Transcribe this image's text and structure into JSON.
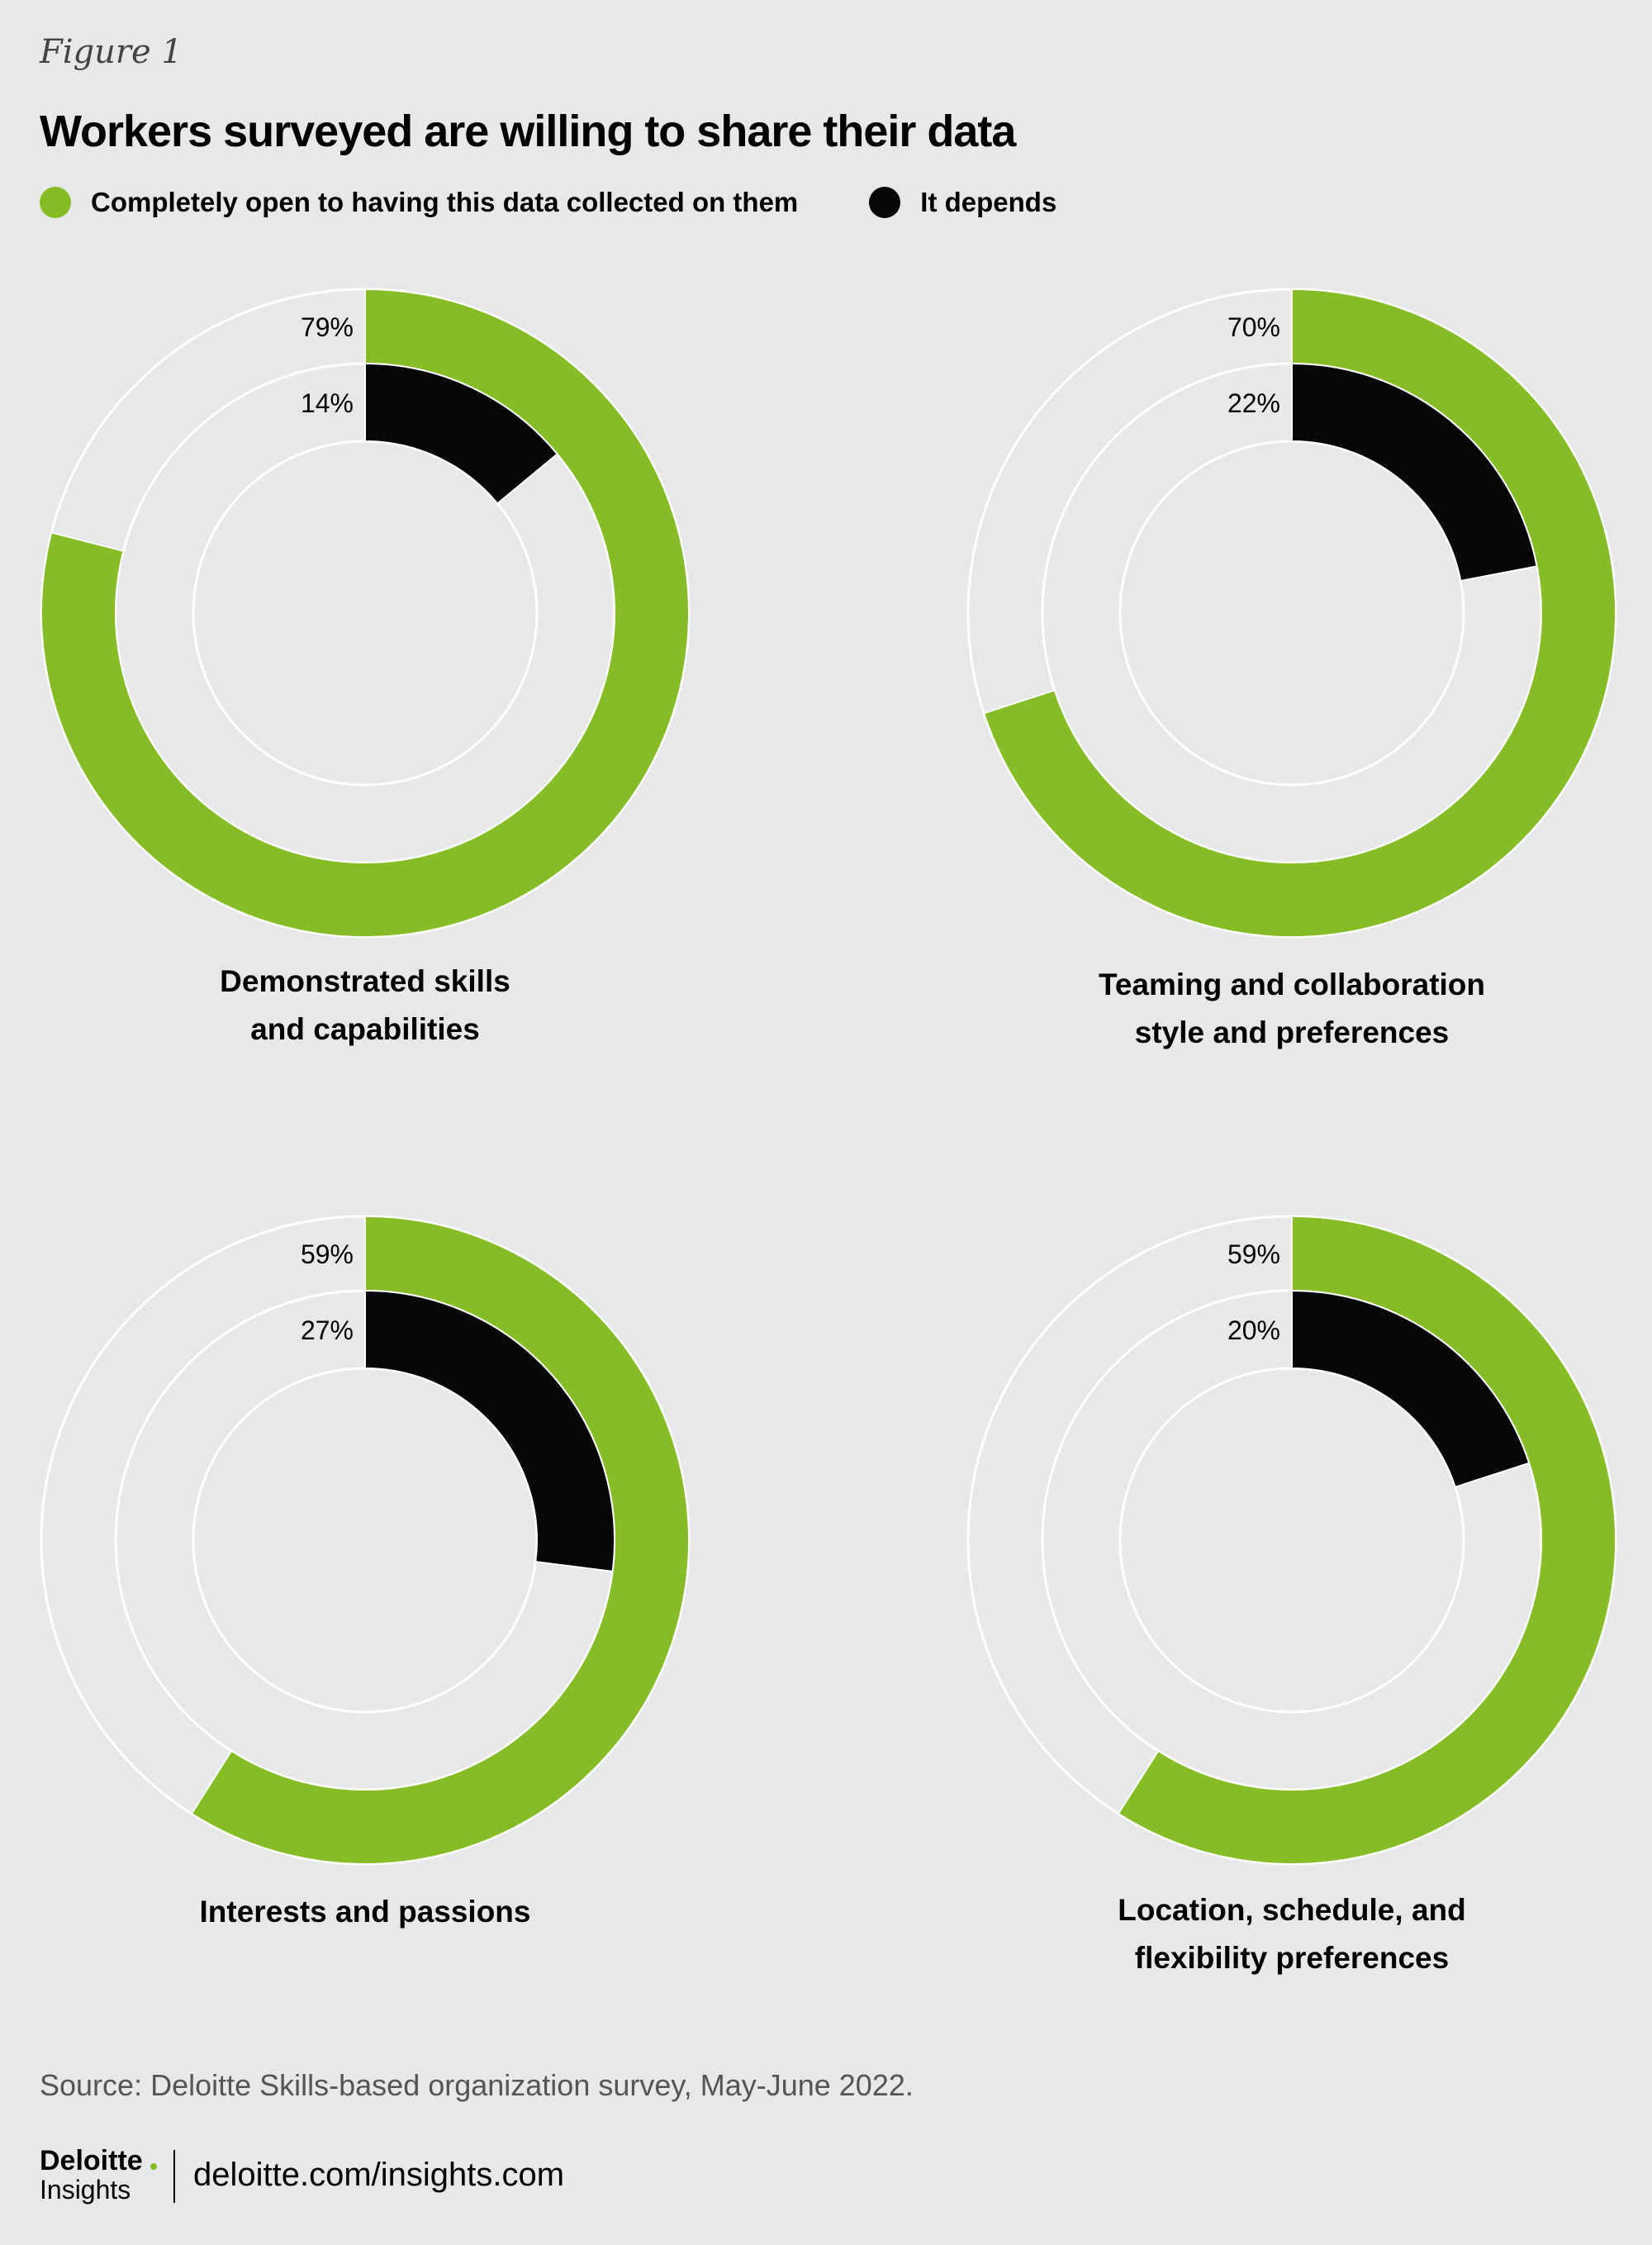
{
  "figure_label": "Figure 1",
  "title": "Workers surveyed are willing to share their data",
  "legend": [
    {
      "label": "Completely open to having this data collected on them",
      "color": "#86bc25"
    },
    {
      "label": "It depends",
      "color": "#050607"
    }
  ],
  "colors": {
    "background": "#e7e8ea",
    "open": "#86bc25",
    "depends": "#050607",
    "ring_outline": "#ffffff"
  },
  "chart_data": [
    {
      "type": "donut",
      "category": "Demonstrated skills and capabilities",
      "label_lines": [
        "Demonstrated skills",
        "and capabilities"
      ],
      "series": [
        {
          "name": "Completely open to having this data collected on them",
          "value": 79,
          "label": "79%"
        },
        {
          "name": "It depends",
          "value": 14,
          "label": "14%"
        }
      ]
    },
    {
      "type": "donut",
      "category": "Teaming and collaboration style and preferences",
      "label_lines": [
        "Teaming and collaboration",
        "style and preferences"
      ],
      "series": [
        {
          "name": "Completely open to having this data collected on them",
          "value": 70,
          "label": "70%"
        },
        {
          "name": "It depends",
          "value": 22,
          "label": "22%"
        }
      ]
    },
    {
      "type": "donut",
      "category": "Interests and passions",
      "label_lines": [
        "Interests and passions"
      ],
      "series": [
        {
          "name": "Completely open to having this data collected on them",
          "value": 59,
          "label": "59%"
        },
        {
          "name": "It depends",
          "value": 27,
          "label": "27%"
        }
      ]
    },
    {
      "type": "donut",
      "category": "Location, schedule, and flexibility preferences",
      "label_lines": [
        "Location, schedule, and",
        "flexibility preferences"
      ],
      "series": [
        {
          "name": "Completely open to having this data collected on them",
          "value": 59,
          "label": "59%"
        },
        {
          "name": "It depends",
          "value": 20,
          "label": "20%"
        }
      ]
    }
  ],
  "source": "Source: Deloitte Skills-based organization survey, May-June 2022.",
  "footer": {
    "brand": "Deloitte",
    "sub": "Insights",
    "site": "deloitte.com/insights.com"
  }
}
